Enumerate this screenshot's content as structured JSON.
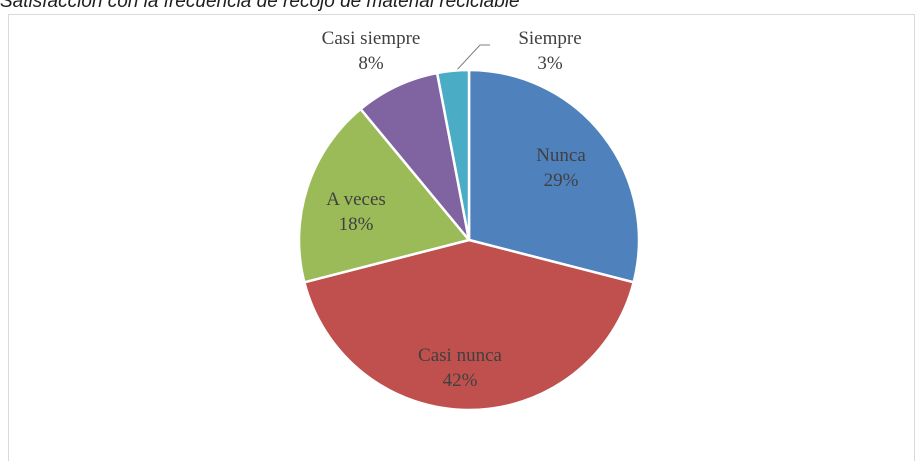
{
  "chart_data": {
    "type": "pie",
    "title": "Satisfacción con la frecuencia de recojo de material reciclable",
    "categories": [
      "Nunca",
      "Casi nunca",
      "A veces",
      "Casi siempre",
      "Siempre"
    ],
    "values": [
      29,
      42,
      18,
      8,
      3
    ],
    "value_labels": [
      "29%",
      "42%",
      "18%",
      "8%",
      "3%"
    ],
    "colors": [
      "#4f81bd",
      "#c0504d",
      "#9bbb59",
      "#8064a2",
      "#4bacc6"
    ]
  }
}
